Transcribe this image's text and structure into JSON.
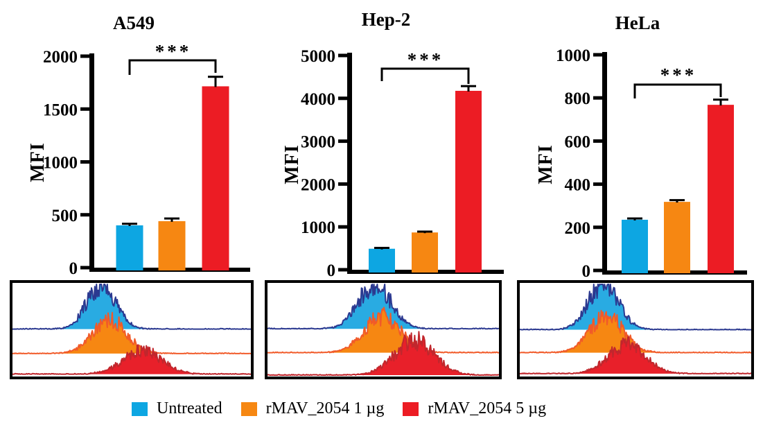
{
  "colors": {
    "cyan": "#0DA6E2",
    "orange": "#F68712",
    "red": "#EC1C24",
    "hist_blue_outline": "#2B3990",
    "hist_orange_outline": "#F15A29",
    "hist_red_outline": "#C1272D",
    "axis_black": "#000000"
  },
  "legend": {
    "items": [
      {
        "label": "Untreated",
        "color": "#0DA6E2"
      },
      {
        "label": "rMAV_2054 1 µg",
        "color": "#F68712"
      },
      {
        "label": "rMAV_2054 5 µg",
        "color": "#EC1C24"
      }
    ]
  },
  "chart_data": [
    {
      "type": "bar",
      "title": "A549",
      "ylabel": "MFI",
      "ylim": [
        0,
        2000
      ],
      "yticks": [
        0,
        500,
        1000,
        1500,
        2000
      ],
      "categories": [
        "Untreated",
        "rMAV_2054 1 µg",
        "rMAV_2054 5 µg"
      ],
      "values": [
        400,
        440,
        1715
      ],
      "errors": [
        15,
        25,
        90
      ],
      "significance": {
        "label": "***",
        "between": [
          0,
          2
        ]
      },
      "bar_colors": [
        "#0DA6E2",
        "#F68712",
        "#EC1C24"
      ],
      "grid": false,
      "legend_position": "bottom-shared"
    },
    {
      "type": "bar",
      "title": "Hep-2",
      "ylabel": "MFI",
      "ylim": [
        0,
        5000
      ],
      "yticks": [
        0,
        1000,
        2000,
        3000,
        4000,
        5000
      ],
      "categories": [
        "Untreated",
        "rMAV_2054 1 µg",
        "rMAV_2054 5 µg"
      ],
      "values": [
        490,
        870,
        4175
      ],
      "errors": [
        20,
        20,
        110
      ],
      "significance": {
        "label": "***",
        "between": [
          0,
          2
        ]
      },
      "bar_colors": [
        "#0DA6E2",
        "#F68712",
        "#EC1C24"
      ],
      "grid": false,
      "legend_position": "bottom-shared"
    },
    {
      "type": "bar",
      "title": "HeLa",
      "ylabel": "MFI",
      "ylim": [
        0,
        1000
      ],
      "yticks": [
        0,
        200,
        400,
        600,
        800,
        1000
      ],
      "categories": [
        "Untreated",
        "rMAV_2054 1 µg",
        "rMAV_2054 5 µg"
      ],
      "values": [
        235,
        318,
        768
      ],
      "errors": [
        6,
        8,
        24
      ],
      "significance": {
        "label": "***",
        "between": [
          0,
          2
        ]
      },
      "bar_colors": [
        "#0DA6E2",
        "#F68712",
        "#EC1C24"
      ],
      "grid": false,
      "legend_position": "bottom-shared"
    },
    {
      "type": "histogram-overlay",
      "description": "Flow cytometry fluorescence intensity histograms, one panel per cell line, three offset traces per panel",
      "panels": [
        {
          "cell_line": "A549",
          "series": [
            {
              "name": "Untreated",
              "center": 0.373,
              "sigma": 0.06,
              "peak": 0.47,
              "base": 0.493,
              "fill": "#29ABE2",
              "stroke": "#2B3990"
            },
            {
              "name": "rMAV_2054 1 µg",
              "center": 0.407,
              "sigma": 0.072,
              "peak": 0.355,
              "base": 0.755,
              "fill": "#F68712",
              "stroke": "#F15A29"
            },
            {
              "name": "rMAV_2054 5 µg",
              "center": 0.545,
              "sigma": 0.082,
              "peak": 0.25,
              "base": 0.975,
              "fill": "#E8202A",
              "stroke": "#C1272D"
            }
          ]
        },
        {
          "cell_line": "Hep-2",
          "series": [
            {
              "name": "Untreated",
              "center": 0.463,
              "sigma": 0.07,
              "peak": 0.48,
              "base": 0.49,
              "fill": "#29ABE2",
              "stroke": "#2B3990"
            },
            {
              "name": "rMAV_2054 1 µg",
              "center": 0.497,
              "sigma": 0.078,
              "peak": 0.39,
              "base": 0.745,
              "fill": "#F68712",
              "stroke": "#F15A29"
            },
            {
              "name": "rMAV_2054 5 µg",
              "center": 0.634,
              "sigma": 0.085,
              "peak": 0.37,
              "base": 0.985,
              "fill": "#E8202A",
              "stroke": "#C1272D"
            }
          ]
        },
        {
          "cell_line": "HeLa",
          "series": [
            {
              "name": "Untreated",
              "center": 0.362,
              "sigma": 0.065,
              "peak": 0.49,
              "base": 0.5,
              "fill": "#29ABE2",
              "stroke": "#2B3990"
            },
            {
              "name": "rMAV_2054 1 µg",
              "center": 0.376,
              "sigma": 0.072,
              "peak": 0.395,
              "base": 0.745,
              "fill": "#F68712",
              "stroke": "#F15A29"
            },
            {
              "name": "rMAV_2054 5 µg",
              "center": 0.464,
              "sigma": 0.08,
              "peak": 0.315,
              "base": 0.97,
              "fill": "#E8202A",
              "stroke": "#C1272D"
            }
          ]
        }
      ]
    }
  ]
}
